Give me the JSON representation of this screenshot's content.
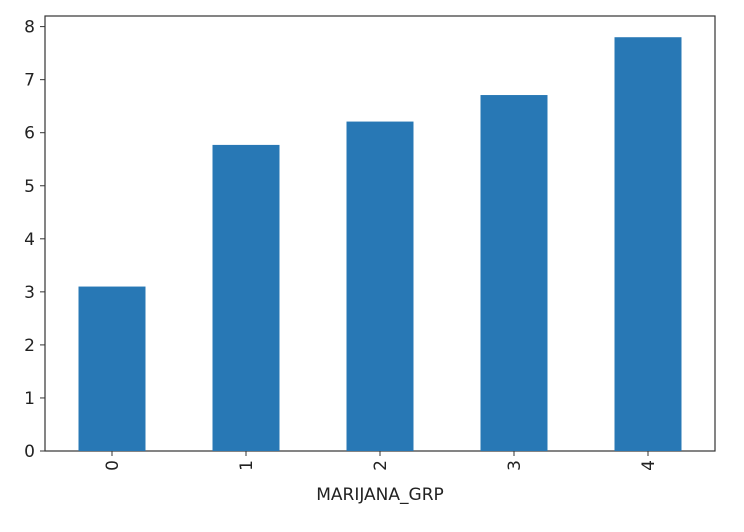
{
  "chart_data": {
    "type": "bar",
    "categories": [
      "0",
      "1",
      "2",
      "3",
      "4"
    ],
    "values": [
      3.1,
      5.77,
      6.21,
      6.71,
      7.8
    ],
    "xlabel": "MARIJANA_GRP",
    "ylabel": "",
    "ylim": [
      0,
      8.2
    ],
    "yticks": [
      0,
      1,
      2,
      3,
      4,
      5,
      6,
      7,
      8
    ],
    "grid": false,
    "legend": "none",
    "bar_color": "#2878b5"
  }
}
